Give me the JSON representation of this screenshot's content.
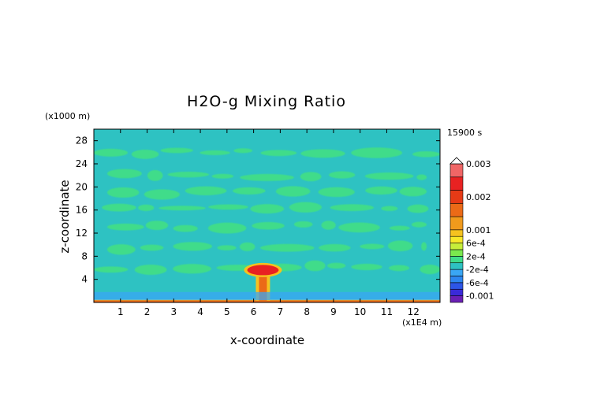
{
  "chart_data": {
    "type": "heatmap",
    "title": "H2O-g Mixing Ratio",
    "time_label": "15900 s",
    "xlabel": "x-coordinate",
    "ylabel": "z-coordinate",
    "x_unit": "(x1E4 m)",
    "y_unit": "(x1000 m)",
    "xlim": [
      0,
      13
    ],
    "ylim": [
      0,
      30
    ],
    "x_ticks": [
      1,
      2,
      3,
      4,
      5,
      6,
      7,
      8,
      9,
      10,
      11,
      12
    ],
    "x_tick_labels": [
      "1",
      "2",
      "3",
      "4",
      "5",
      "6",
      "7",
      "8",
      "9",
      "10",
      "11",
      "12"
    ],
    "y_ticks": [
      4,
      8,
      12,
      16,
      20,
      24,
      28
    ],
    "y_tick_labels": [
      "4",
      "8",
      "12",
      "16",
      "20",
      "24",
      "28"
    ],
    "colorbar": {
      "labels": [
        "0.003",
        "0.002",
        "0.001",
        "6e-4",
        "2e-4",
        "-2e-4",
        "-6e-4",
        "-0.001"
      ],
      "label_values": [
        0.003,
        0.002,
        0.001,
        0.0006,
        0.0002,
        -0.0002,
        -0.0006,
        -0.001
      ],
      "colors": [
        "#6a1fb4",
        "#3a2ad8",
        "#2d55e6",
        "#2d86f0",
        "#3aa6f4",
        "#2ec2c2",
        "#3fdc8a",
        "#7ae84e",
        "#c6ee3a",
        "#f7e829",
        "#f5c21f",
        "#f09a1c",
        "#eb6a17",
        "#e63a16",
        "#e82222",
        "#f06666",
        "#f9a8a8"
      ],
      "boundaries": [
        -0.0012,
        -0.001,
        -0.0008,
        -0.0006,
        -0.0004,
        -0.0002,
        0,
        0.0002,
        0.0004,
        0.0006,
        0.0008,
        0.001,
        0.0014,
        0.0018,
        0.0022,
        0.0026,
        0.003
      ]
    },
    "background_value": -0.0001,
    "field_features": [
      {
        "kind": "moist_band",
        "z_center": 6.0,
        "x_range": [
          0,
          13
        ],
        "value": 0.0001
      },
      {
        "kind": "moist_band",
        "z_center": 9.5,
        "x_range": [
          0.5,
          12.5
        ],
        "value": 0.0001
      },
      {
        "kind": "moist_band",
        "z_center": 13.2,
        "x_range": [
          0.5,
          12.5
        ],
        "value": 0.0001
      },
      {
        "kind": "moist_band",
        "z_center": 16.6,
        "x_range": [
          0.3,
          12.7
        ],
        "value": 0.0001
      },
      {
        "kind": "moist_band",
        "z_center": 19.0,
        "x_range": [
          0.5,
          12.5
        ],
        "value": 0.0001
      },
      {
        "kind": "moist_band",
        "z_center": 22.0,
        "x_range": [
          0.5,
          12.5
        ],
        "value": 0.0001
      },
      {
        "kind": "moist_band",
        "z_center": 26.0,
        "x_range": [
          0,
          13
        ],
        "value": 0.0001
      },
      {
        "kind": "surface_layer",
        "z_range": [
          0,
          0.4
        ],
        "x_range": [
          0,
          13
        ],
        "value": 0.0016
      },
      {
        "kind": "plume_stem",
        "x_center": 6.35,
        "z_range": [
          0.3,
          5.3
        ],
        "value": 0.0014
      },
      {
        "kind": "plume_cap",
        "x_center": 6.35,
        "z_center": 5.6,
        "value": 0.0022
      },
      {
        "kind": "dry_layer",
        "z_range": [
          0.4,
          1.8
        ],
        "x_range": [
          0,
          13
        ],
        "value": -0.0004
      }
    ]
  }
}
